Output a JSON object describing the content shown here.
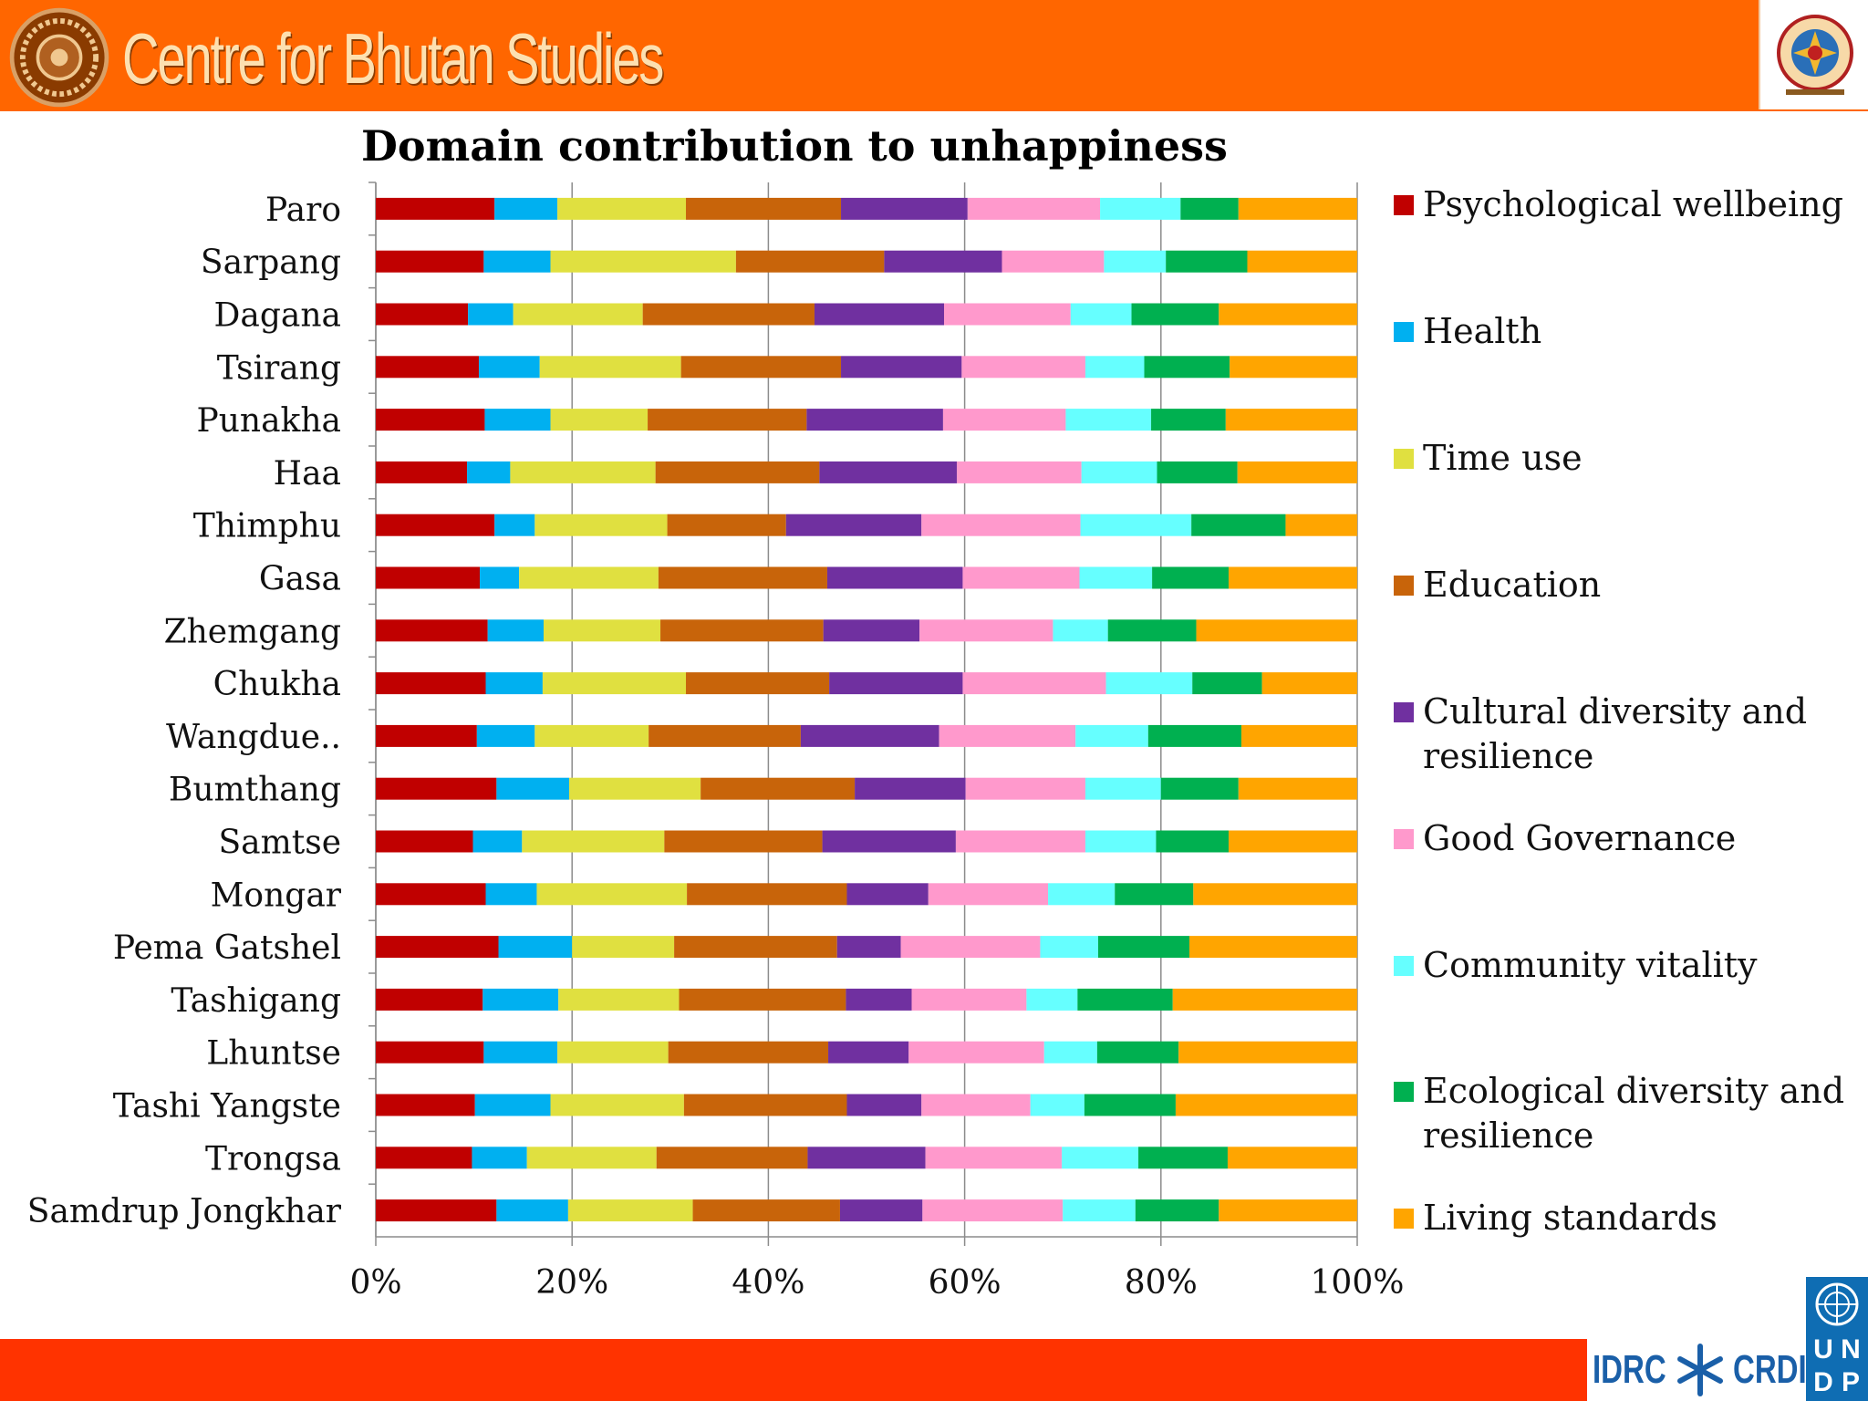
{
  "header": {
    "title": "Centre for Bhutan Studies",
    "bg_color": "#ff6600"
  },
  "chart_data": {
    "type": "bar",
    "orientation": "horizontal",
    "stacked": "percent",
    "title": "Domain contribution to unhappiness",
    "xlabel": "",
    "ylabel": "",
    "xlim": [
      0,
      100
    ],
    "x_tick_labels": [
      "0%",
      "20%",
      "40%",
      "60%",
      "80%",
      "100%"
    ],
    "grid": true,
    "legend_position": "right",
    "categories": [
      "Paro",
      "Sarpang",
      "Dagana",
      "Tsirang",
      "Punakha",
      "Haa",
      "Thimphu",
      "Gasa",
      "Zhemgang",
      "Chukha",
      "Wangdue..",
      "Bumthang",
      "Samtse",
      "Mongar",
      "Pema Gatshel",
      "Tashigang",
      "Lhuntse",
      "Tashi Yangste",
      "Trongsa",
      "Samdrup Jongkhar"
    ],
    "series": [
      {
        "name": "Psychological wellbeing",
        "color": "#c00000",
        "values": [
          12.1,
          11.0,
          9.4,
          10.5,
          11.1,
          9.3,
          12.1,
          10.6,
          11.4,
          11.2,
          10.3,
          12.3,
          9.9,
          11.2,
          12.5,
          10.9,
          11.0,
          10.1,
          9.8,
          12.3
        ]
      },
      {
        "name": "Health",
        "color": "#00b0f0",
        "values": [
          6.4,
          6.8,
          4.6,
          6.2,
          6.7,
          4.4,
          4.1,
          4.0,
          5.7,
          5.8,
          5.9,
          7.4,
          5.0,
          5.2,
          7.5,
          7.7,
          7.5,
          7.7,
          5.6,
          7.3
        ]
      },
      {
        "name": "Time use",
        "color": "#e0e040",
        "values": [
          13.1,
          18.9,
          13.2,
          14.4,
          9.9,
          14.8,
          13.5,
          14.2,
          11.9,
          14.6,
          11.6,
          13.4,
          14.5,
          15.3,
          10.4,
          12.3,
          11.3,
          13.6,
          13.2,
          12.7
        ]
      },
      {
        "name": "Education",
        "color": "#c8640a",
        "values": [
          15.8,
          15.1,
          17.5,
          16.3,
          16.2,
          16.7,
          12.1,
          17.2,
          16.6,
          14.6,
          15.5,
          15.7,
          16.1,
          16.3,
          16.6,
          17.0,
          16.3,
          16.6,
          15.4,
          15.0
        ]
      },
      {
        "name": "Cultural diversity and resilience",
        "color": "#7030a0",
        "values": [
          12.9,
          12.0,
          13.2,
          12.3,
          13.9,
          14.0,
          13.8,
          13.8,
          9.8,
          13.6,
          14.1,
          11.3,
          13.6,
          8.3,
          6.5,
          6.7,
          8.2,
          7.6,
          12.0,
          8.4
        ]
      },
      {
        "name": "Good Governance",
        "color": "#ff99cc",
        "values": [
          13.5,
          10.4,
          12.9,
          12.6,
          12.5,
          12.7,
          16.2,
          11.9,
          13.6,
          14.6,
          13.9,
          12.2,
          13.2,
          12.2,
          14.2,
          11.7,
          13.8,
          11.1,
          13.9,
          14.3
        ]
      },
      {
        "name": "Community vitality",
        "color": "#66ffff",
        "values": [
          8.2,
          6.3,
          6.2,
          6.0,
          8.7,
          7.7,
          11.3,
          7.4,
          5.6,
          8.8,
          7.4,
          7.7,
          7.2,
          6.8,
          5.9,
          5.2,
          5.4,
          5.5,
          7.8,
          7.4
        ]
      },
      {
        "name": "Ecological diversity and resilience",
        "color": "#00b050",
        "values": [
          5.9,
          8.3,
          8.9,
          8.7,
          7.6,
          8.2,
          9.6,
          7.8,
          9.0,
          7.1,
          9.5,
          7.9,
          7.4,
          8.0,
          9.3,
          9.7,
          8.3,
          9.3,
          9.1,
          8.5
        ]
      },
      {
        "name": "Living standards",
        "color": "#ffa500",
        "values": [
          12.1,
          11.2,
          14.1,
          13.0,
          13.4,
          12.2,
          7.3,
          13.1,
          16.4,
          9.7,
          11.8,
          12.1,
          13.1,
          16.7,
          17.1,
          18.8,
          18.2,
          18.5,
          13.2,
          14.1
        ]
      }
    ]
  },
  "footer": {
    "bar_color": "#ff3300",
    "idrc_label": "IDRC",
    "crdi_label": "CRDI",
    "undp_letters": [
      "U",
      "N",
      "D",
      "P"
    ]
  }
}
